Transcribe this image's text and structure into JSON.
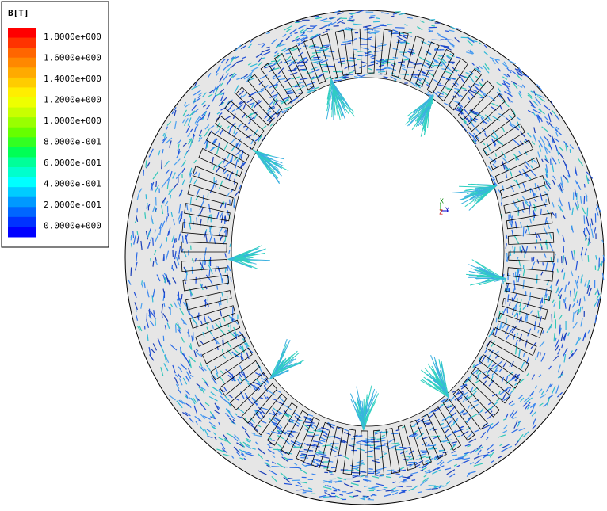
{
  "legend": {
    "title": "B[T]",
    "labels": [
      "1.8000e+000",
      "1.6000e+000",
      "1.4000e+000",
      "1.2000e+000",
      "1.0000e+000",
      "8.0000e-001",
      "6.0000e-001",
      "4.0000e-001",
      "2.0000e-001",
      "0.0000e+000"
    ],
    "colors": [
      "#ff0000",
      "#ff3300",
      "#ff6600",
      "#ff8800",
      "#ffaa00",
      "#ffcc00",
      "#ffee00",
      "#eeff00",
      "#c8ff00",
      "#99ff00",
      "#66ff00",
      "#33ff22",
      "#00ff55",
      "#00ff99",
      "#00ffcc",
      "#00ffff",
      "#00ccff",
      "#0099ff",
      "#0066ff",
      "#0033ff",
      "#0000ff"
    ]
  },
  "triad": {
    "x": "X",
    "z": "Z",
    "y": "Y"
  }
}
